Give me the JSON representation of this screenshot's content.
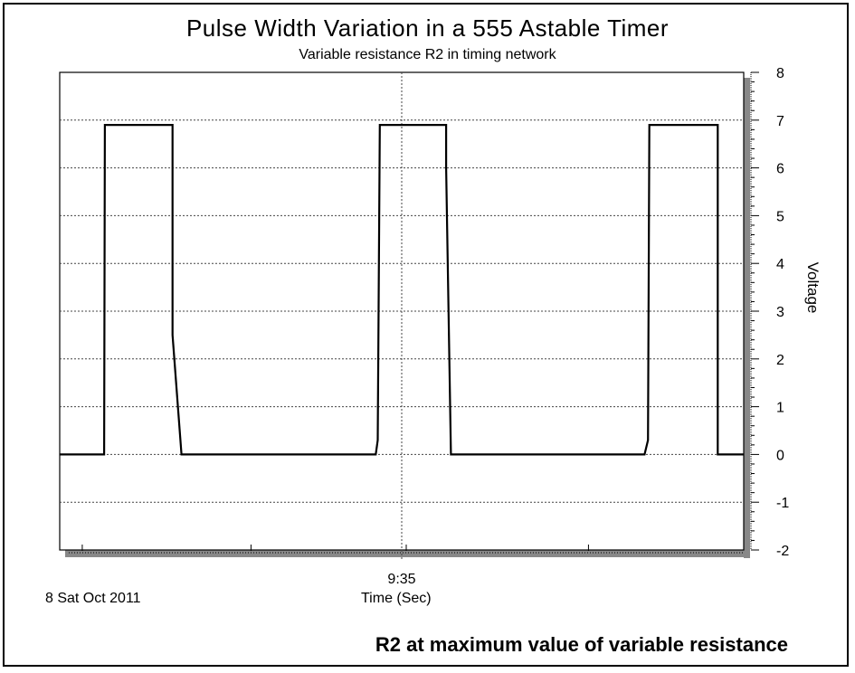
{
  "chart_data": {
    "type": "line",
    "title": "Pulse Width Variation in a 555 Astable Timer",
    "subtitle": "Variable resistance R2 in timing network",
    "xlabel": "Time (Sec)",
    "ylabel": "Voltage",
    "x_tick_label": "9:35",
    "date_label": "8 Sat Oct 2011",
    "footnote": "R2 at maximum value of variable resistance",
    "ylim": [
      -2,
      8
    ],
    "y_ticks": [
      "-2",
      "-1",
      "0",
      "1",
      "2",
      "3",
      "4",
      "5",
      "6",
      "7",
      "8"
    ],
    "grid": true,
    "x_range": [
      0,
      100
    ],
    "series": [
      {
        "x": [
          0,
          6.5,
          6.6,
          16.5,
          16.5,
          17.8,
          46.2,
          46.5,
          46.8,
          56.5,
          56.5,
          57.2,
          85.5,
          86,
          86.2,
          96.2,
          96.2,
          100
        ],
        "y": [
          0,
          0,
          6.9,
          6.9,
          2.5,
          0,
          0,
          0.3,
          6.9,
          6.9,
          6.0,
          0,
          0,
          0.3,
          6.9,
          6.9,
          0,
          0
        ]
      }
    ],
    "colors": {
      "line": "#000000",
      "grid": "#444444",
      "shadow": "#888888"
    }
  }
}
